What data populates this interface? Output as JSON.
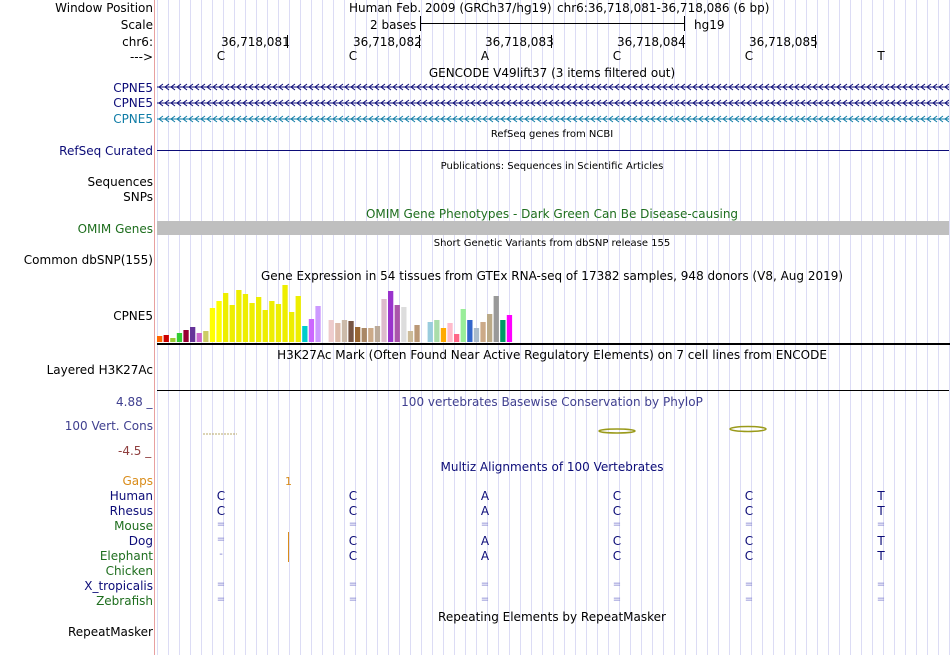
{
  "position": {
    "label_window": "Window Position",
    "label_scale": "Scale",
    "label_chrom": "chr6:",
    "label_arrow": "--->",
    "assembly": "Human Feb. 2009 (GRCh37/hg19)",
    "range": "chr6:36,718,081-36,718,086 (6 bp)",
    "scale_text": "2 bases",
    "scale_db": "hg19",
    "ticks": [
      "36,718,081",
      "36,718,082",
      "36,718,083",
      "36,718,084",
      "36,718,085"
    ],
    "bases": [
      "C",
      "C",
      "A",
      "C",
      "C",
      "T"
    ]
  },
  "gencode": {
    "header": "GENCODE V49lift37 (3 items filtered out)",
    "genes": [
      {
        "label": "CPNE5",
        "color": "#0c0c78"
      },
      {
        "label": "CPNE5",
        "color": "#0c0c78"
      },
      {
        "label": "CPNE5",
        "color": "#0f7ca6"
      }
    ]
  },
  "refseq": {
    "header": "RefSeq genes from NCBI",
    "label": "RefSeq Curated",
    "color": "#0c0c78"
  },
  "publications": {
    "header": "Publications: Sequences in Scientific Articles",
    "label1": "Sequences",
    "label2": "SNPs"
  },
  "omim": {
    "header": "OMIM Gene Phenotypes - Dark Green Can Be Disease-causing",
    "label": "OMIM Genes",
    "color": "#1e6e1e"
  },
  "dbsnp": {
    "header": "Short Genetic Variants from dbSNP release 155",
    "label": "Common dbSNP(155)"
  },
  "gtex": {
    "header": "Gene Expression in 54 tissues from GTEx RNA-seq of 17382 samples, 948 donors (V8, Aug 2019)",
    "label": "CPNE5",
    "max": 57,
    "values": [
      6,
      7,
      4,
      9,
      12,
      15,
      9,
      11,
      34,
      41,
      49,
      37,
      52,
      48,
      39,
      45,
      32,
      41,
      38,
      57,
      30,
      46,
      16,
      23,
      36,
      0,
      22,
      19,
      22,
      21,
      15,
      14,
      14,
      16,
      43,
      51,
      37,
      35,
      11,
      17,
      0,
      20,
      22,
      14,
      19,
      8,
      33,
      22,
      14,
      20,
      28,
      46,
      22,
      27
    ],
    "colors": [
      "#ff6600",
      "#cc0000",
      "#99cc33",
      "#33cc33",
      "#990033",
      "#663399",
      "#cc66cc",
      "#cccc66",
      "#ffff00",
      "#ffff00",
      "#eeee00",
      "#eeee00",
      "#eeee00",
      "#eeee00",
      "#eeee00",
      "#eeee00",
      "#eeee00",
      "#eeee00",
      "#eeee00",
      "#eeee00",
      "#eeee00",
      "#eeee00",
      "#00cccc",
      "#cc66ff",
      "#cc99ff",
      "#dddddd",
      "#eecccc",
      "#ddbbaa",
      "#ccbbaa",
      "#775544",
      "#996633",
      "#aa8866",
      "#ccaa88",
      "#bbaa99",
      "#ddbbcc",
      "#9933cc",
      "#aa55aa",
      "#dddddd",
      "#ccbb99",
      "#bb9977",
      "#dddddd",
      "#99ccdd",
      "#aaddaa",
      "#ffaa00",
      "#ffbbcc",
      "#ff6688",
      "#99ee99",
      "#3366cc",
      "#aabbcc",
      "#ccaa88",
      "#bbaa88",
      "#999999",
      "#009966",
      "#ff00ff"
    ]
  },
  "h3k27ac": {
    "header": "H3K27Ac Mark (Often Found Near Active Regulatory Elements) on 7 cell lines from ENCODE",
    "label": "Layered H3K27Ac"
  },
  "phylop": {
    "header": "100 vertebrates Basewise Conservation by PhyloP",
    "label": "100 Vert. Cons",
    "max_label": "4.88 _",
    "min_label": "-4.5 _",
    "color_pos": "#3f3f8f",
    "color_neg": "#8f3f3f"
  },
  "multiz": {
    "header": "Multiz Alignments of 100 Vertebrates",
    "gaps_label": "Gaps",
    "gaps_mark": "1",
    "species": [
      {
        "name": "Human",
        "color": "#0c0c78",
        "bases": [
          "C",
          "C",
          "A",
          "C",
          "C",
          "T"
        ]
      },
      {
        "name": "Rhesus",
        "color": "#0c0c78",
        "bases": [
          "C",
          "C",
          "A",
          "C",
          "C",
          "T"
        ]
      },
      {
        "name": "Mouse",
        "color": "#1e6e1e",
        "bases": [
          "=",
          "=",
          "=",
          "=",
          "=",
          "="
        ]
      },
      {
        "name": "Dog",
        "color": "#0c0c78",
        "bases": [
          "=",
          "C",
          "A",
          "C",
          "C",
          "T"
        ]
      },
      {
        "name": "Elephant",
        "color": "#1e6e1e",
        "bases": [
          "-",
          "C",
          "A",
          "C",
          "C",
          "T"
        ]
      },
      {
        "name": "Chicken",
        "color": "#1e6e1e",
        "bases": [
          "",
          "",
          "",
          "",
          "",
          ""
        ]
      },
      {
        "name": "X_tropicalis",
        "color": "#0c0c78",
        "bases": [
          "=",
          "=",
          "=",
          "=",
          "=",
          "="
        ]
      },
      {
        "name": "Zebrafish",
        "color": "#1e6e1e",
        "bases": [
          "=",
          "=",
          "=",
          "=",
          "=",
          "="
        ]
      }
    ]
  },
  "repeatmasker": {
    "header": "Repeating Elements by RepeatMasker",
    "label": "RepeatMasker"
  }
}
